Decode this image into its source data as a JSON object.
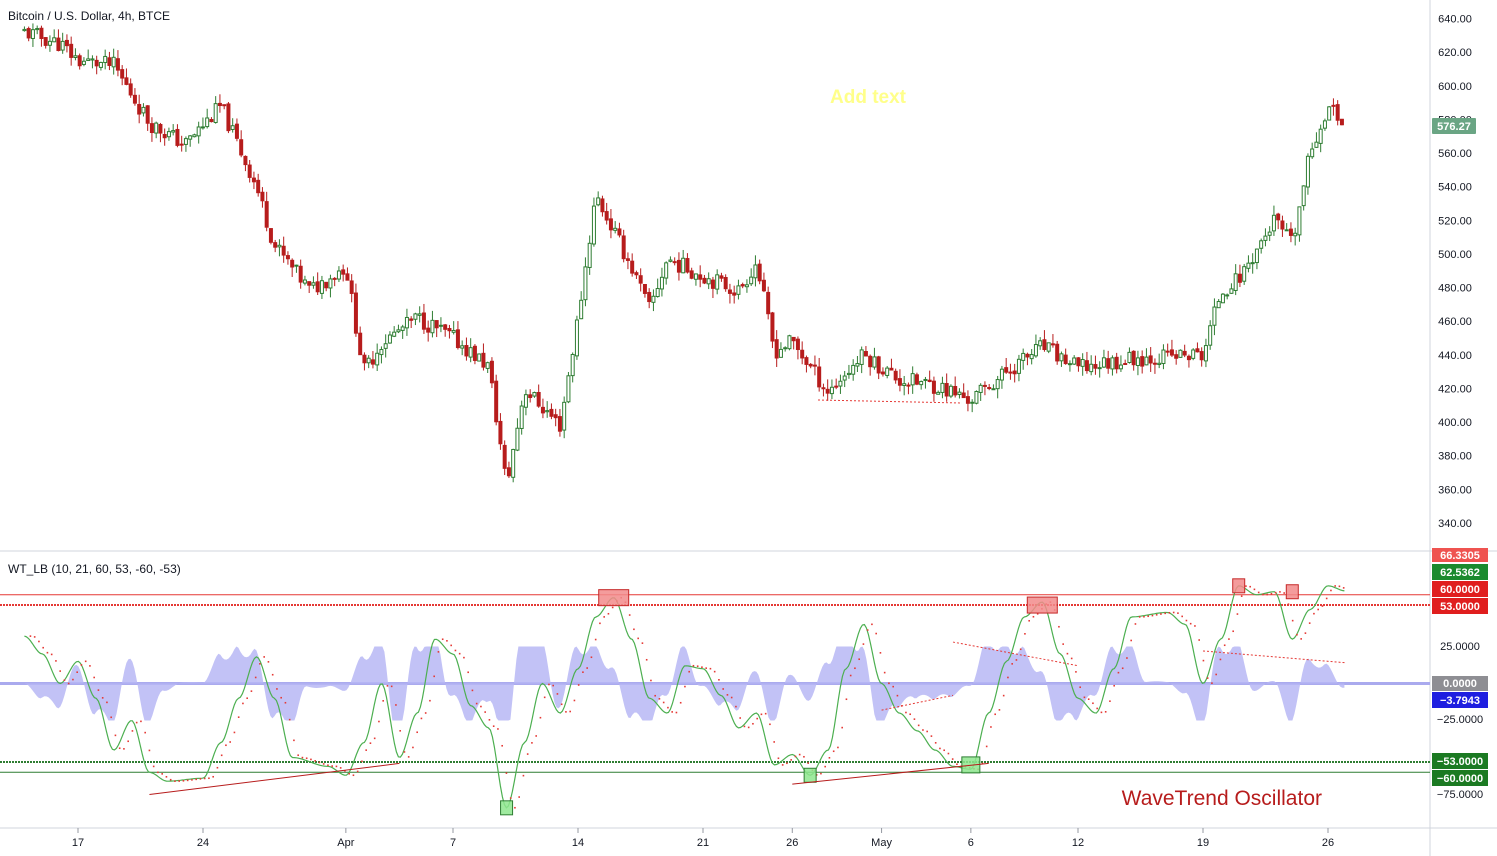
{
  "header": {
    "symbol_title": "Bitcoin / U.S. Dollar, 4h, BTCE",
    "indicator_title": "WT_LB (10, 21, 60, 53, -60, -53)",
    "annotation_text": "Add text",
    "oscillator_caption": "WaveTrend Oscillator"
  },
  "price_axis": {
    "ticks": [
      "640.00",
      "620.00",
      "600.00",
      "580.00",
      "560.00",
      "540.00",
      "520.00",
      "500.00",
      "480.00",
      "460.00",
      "440.00",
      "420.00",
      "400.00",
      "380.00",
      "360.00",
      "340.00"
    ],
    "current_price_label": "576.27"
  },
  "osc_axis": {
    "labels": {
      "v66": "66.3305",
      "v62": "62.5362",
      "v60": "60.0000",
      "v53": "53.0000",
      "v25": "25.0000",
      "v0": "0.0000",
      "vm3": "−3.7943",
      "vm25": "−25.0000",
      "vm53": "−53.0000",
      "vm60": "−60.0000",
      "vm75": "−75.0000"
    }
  },
  "time_axis": {
    "labels": [
      "17",
      "24",
      "Apr",
      "7",
      "14",
      "21",
      "26",
      "May",
      "6",
      "12",
      "19",
      "26"
    ]
  },
  "colors": {
    "bull": "#26a69a",
    "bear": "#ef5350",
    "candle_up": "#2e7d32",
    "candle_down": "#b71c1c",
    "wt1": "#4caf50",
    "wt2": "#e53935",
    "hist": "#b7b7f5",
    "zero_band": "#aaaaee",
    "ob_line": "#e53935",
    "os_line": "#2e7d32"
  },
  "chart_data": [
    {
      "type": "candlestick",
      "title": "Bitcoin / U.S. Dollar, 4h, BTCE",
      "ylim": [
        330,
        645
      ],
      "x_labels": [
        "17",
        "24",
        "Apr",
        "7",
        "14",
        "21",
        "26",
        "May",
        "6",
        "12",
        "19",
        "26"
      ],
      "last_price": 576.27,
      "close_path": [
        {
          "t": "Mar 14",
          "close": 632
        },
        {
          "t": "Mar 16",
          "close": 625
        },
        {
          "t": "Mar 17",
          "close": 615
        },
        {
          "t": "Mar 19",
          "close": 612
        },
        {
          "t": "Mar 21",
          "close": 578
        },
        {
          "t": "Mar 23",
          "close": 565
        },
        {
          "t": "Mar 25",
          "close": 588
        },
        {
          "t": "Mar 27",
          "close": 540
        },
        {
          "t": "Mar 28",
          "close": 505
        },
        {
          "t": "Mar 30",
          "close": 478
        },
        {
          "t": "Apr 1",
          "close": 493
        },
        {
          "t": "Apr 2",
          "close": 430
        },
        {
          "t": "Apr 3",
          "close": 447
        },
        {
          "t": "Apr 5",
          "close": 462
        },
        {
          "t": "Apr 7",
          "close": 450
        },
        {
          "t": "Apr 9",
          "close": 433
        },
        {
          "t": "Apr 10",
          "close": 362
        },
        {
          "t": "Apr 11",
          "close": 420
        },
        {
          "t": "Apr 13",
          "close": 398
        },
        {
          "t": "Apr 14",
          "close": 462
        },
        {
          "t": "Apr 15",
          "close": 535
        },
        {
          "t": "Apr 17",
          "close": 492
        },
        {
          "t": "Apr 18",
          "close": 467
        },
        {
          "t": "Apr 19",
          "close": 497
        },
        {
          "t": "Apr 21",
          "close": 487
        },
        {
          "t": "Apr 23",
          "close": 478
        },
        {
          "t": "Apr 24",
          "close": 495
        },
        {
          "t": "Apr 25",
          "close": 442
        },
        {
          "t": "Apr 26",
          "close": 448
        },
        {
          "t": "Apr 28",
          "close": 418
        },
        {
          "t": "Apr 30",
          "close": 440
        },
        {
          "t": "May 2",
          "close": 425
        },
        {
          "t": "May 4",
          "close": 422
        },
        {
          "t": "May 6",
          "close": 413
        },
        {
          "t": "May 8",
          "close": 430
        },
        {
          "t": "May 10",
          "close": 445
        },
        {
          "t": "May 12",
          "close": 432
        },
        {
          "t": "May 15",
          "close": 438
        },
        {
          "t": "May 19",
          "close": 440
        },
        {
          "t": "May 20",
          "close": 478
        },
        {
          "t": "May 21",
          "close": 485
        },
        {
          "t": "May 23",
          "close": 520
        },
        {
          "t": "May 24",
          "close": 505
        },
        {
          "t": "May 25",
          "close": 560
        },
        {
          "t": "May 26",
          "close": 588
        },
        {
          "t": "May 27",
          "close": 576.27
        }
      ]
    },
    {
      "type": "line",
      "title": "WT_LB (10, 21, 60, 53, -60, -53)",
      "ylim": [
        -90,
        72
      ],
      "levels": {
        "ob1": 60,
        "ob2": 53,
        "os1": -53,
        "os2": -60
      },
      "series_labels": {
        "wt1_last": 62.5362,
        "wt2_last": 66.3305,
        "hist_last": -3.7943
      },
      "wt1_path": [
        {
          "t": "Mar 14",
          "v": 32
        },
        {
          "t": "Mar 15",
          "v": 20
        },
        {
          "t": "Mar 16",
          "v": 0
        },
        {
          "t": "Mar 17",
          "v": 15
        },
        {
          "t": "Mar 18",
          "v": -10
        },
        {
          "t": "Mar 19",
          "v": -45
        },
        {
          "t": "Mar 20",
          "v": -25
        },
        {
          "t": "Mar 21",
          "v": -60
        },
        {
          "t": "Mar 22",
          "v": -66
        },
        {
          "t": "Mar 24",
          "v": -64
        },
        {
          "t": "Mar 25",
          "v": -40
        },
        {
          "t": "Mar 26",
          "v": -10
        },
        {
          "t": "Mar 27",
          "v": 18
        },
        {
          "t": "Mar 28",
          "v": -10
        },
        {
          "t": "Mar 29",
          "v": -50
        },
        {
          "t": "Mar 31",
          "v": -56
        },
        {
          "t": "Apr 1",
          "v": -62
        },
        {
          "t": "Apr 2",
          "v": -40
        },
        {
          "t": "Apr 3",
          "v": 0
        },
        {
          "t": "Apr 4",
          "v": -50
        },
        {
          "t": "Apr 5",
          "v": -20
        },
        {
          "t": "Apr 6",
          "v": 30
        },
        {
          "t": "Apr 7",
          "v": 20
        },
        {
          "t": "Apr 8",
          "v": -15
        },
        {
          "t": "Apr 9",
          "v": -30
        },
        {
          "t": "Apr 10",
          "v": -84
        },
        {
          "t": "Apr 11",
          "v": -40
        },
        {
          "t": "Apr 12",
          "v": 0
        },
        {
          "t": "Apr 13",
          "v": -20
        },
        {
          "t": "Apr 14",
          "v": 10
        },
        {
          "t": "Apr 15",
          "v": 45
        },
        {
          "t": "Apr 16",
          "v": 58
        },
        {
          "t": "Apr 17",
          "v": 30
        },
        {
          "t": "Apr 18",
          "v": -10
        },
        {
          "t": "Apr 19",
          "v": -20
        },
        {
          "t": "Apr 20",
          "v": 12
        },
        {
          "t": "Apr 21",
          "v": 10
        },
        {
          "t": "Apr 22",
          "v": -8
        },
        {
          "t": "Apr 23",
          "v": -30
        },
        {
          "t": "Apr 24",
          "v": -20
        },
        {
          "t": "Apr 25",
          "v": -55
        },
        {
          "t": "Apr 26",
          "v": -48
        },
        {
          "t": "Apr 27",
          "v": -62
        },
        {
          "t": "Apr 28",
          "v": -45
        },
        {
          "t": "Apr 29",
          "v": 10
        },
        {
          "t": "Apr 30",
          "v": 40
        },
        {
          "t": "May 1",
          "v": 0
        },
        {
          "t": "May 2",
          "v": -20
        },
        {
          "t": "May 3",
          "v": -32
        },
        {
          "t": "May 4",
          "v": -45
        },
        {
          "t": "May 5",
          "v": -56
        },
        {
          "t": "May 6",
          "v": -58
        },
        {
          "t": "May 7",
          "v": -20
        },
        {
          "t": "May 8",
          "v": 15
        },
        {
          "t": "May 9",
          "v": 45
        },
        {
          "t": "May 10",
          "v": 55
        },
        {
          "t": "May 11",
          "v": 20
        },
        {
          "t": "May 12",
          "v": -10
        },
        {
          "t": "May 13",
          "v": -20
        },
        {
          "t": "May 14",
          "v": 10
        },
        {
          "t": "May 15",
          "v": 45
        },
        {
          "t": "May 17",
          "v": 48
        },
        {
          "t": "May 18",
          "v": 40
        },
        {
          "t": "May 19",
          "v": 0
        },
        {
          "t": "May 20",
          "v": 30
        },
        {
          "t": "May 21",
          "v": 66
        },
        {
          "t": "May 22",
          "v": 60
        },
        {
          "t": "May 23",
          "v": 62
        },
        {
          "t": "May 24",
          "v": 30
        },
        {
          "t": "May 25",
          "v": 50
        },
        {
          "t": "May 26",
          "v": 66
        },
        {
          "t": "May 27",
          "v": 62.5
        }
      ]
    }
  ]
}
